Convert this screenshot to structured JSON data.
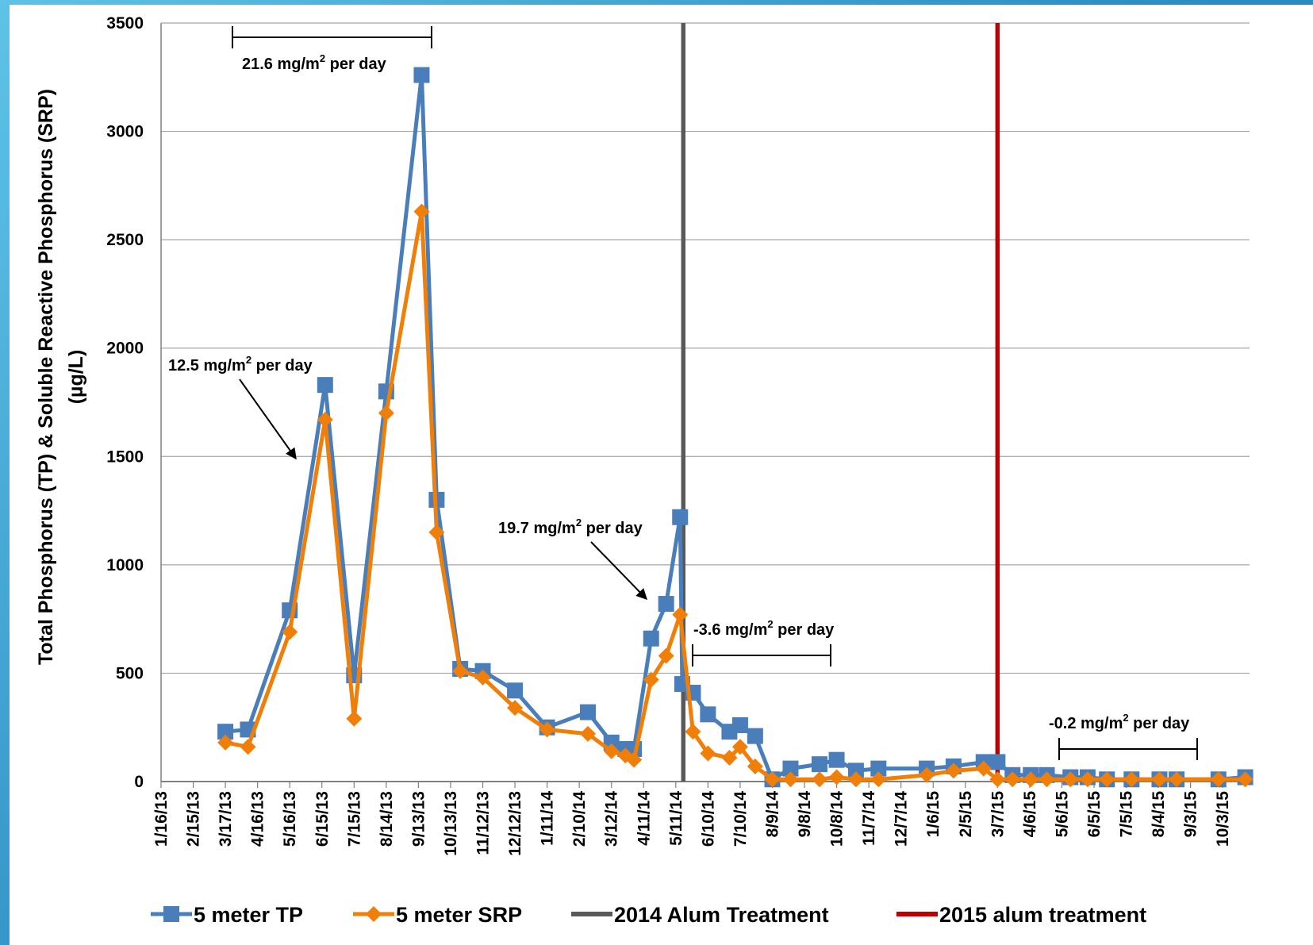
{
  "chart_data": {
    "type": "line",
    "ylabel_lines": [
      "Total Phosphorus (TP) & Soluble Reactive Phosphorus (SRP)",
      "(µg/L)"
    ],
    "ylim": [
      0,
      3500
    ],
    "yticks": [
      0,
      500,
      1000,
      1500,
      2000,
      2500,
      3000,
      3500
    ],
    "xlim": [
      "2013-01-16",
      "2015-10-28"
    ],
    "xtick_labels": [
      "1/16/13",
      "2/15/13",
      "3/17/13",
      "4/16/13",
      "5/16/13",
      "6/15/13",
      "7/15/13",
      "8/14/13",
      "9/13/13",
      "10/13/13",
      "11/12/13",
      "12/12/13",
      "1/11/14",
      "2/10/14",
      "3/12/14",
      "4/11/14",
      "5/11/14",
      "6/10/14",
      "7/10/14",
      "8/9/14",
      "9/8/14",
      "10/8/14",
      "11/7/14",
      "12/7/14",
      "1/6/15",
      "2/5/15",
      "3/7/15",
      "4/6/15",
      "5/6/15",
      "6/5/15",
      "7/5/15",
      "8/4/15",
      "9/3/15",
      "10/3/15"
    ],
    "xtick_dates": [
      "2013-01-16",
      "2013-02-15",
      "2013-03-17",
      "2013-04-16",
      "2013-05-16",
      "2013-06-15",
      "2013-07-15",
      "2013-08-14",
      "2013-09-13",
      "2013-10-13",
      "2013-11-12",
      "2013-12-12",
      "2014-01-11",
      "2014-02-10",
      "2014-03-12",
      "2014-04-11",
      "2014-05-11",
      "2014-06-10",
      "2014-07-10",
      "2014-08-09",
      "2014-09-08",
      "2014-10-08",
      "2014-11-07",
      "2014-12-07",
      "2015-01-06",
      "2015-02-05",
      "2015-03-07",
      "2015-04-06",
      "2015-05-06",
      "2015-06-05",
      "2015-07-05",
      "2015-08-04",
      "2015-09-03",
      "2015-10-03"
    ],
    "grid": true,
    "legend_position": "bottom",
    "series": [
      {
        "name": "5 meter TP",
        "color": "#4a7ebb",
        "marker": "square",
        "x": [
          "2013-03-17",
          "2013-04-07",
          "2013-05-16",
          "2013-06-18",
          "2013-07-15",
          "2013-08-14",
          "2013-09-16",
          "2013-09-30",
          "2013-10-22",
          "2013-11-12",
          "2013-12-12",
          "2014-01-11",
          "2014-02-18",
          "2014-03-12",
          "2014-03-25",
          "2014-04-02",
          "2014-04-18",
          "2014-05-02",
          "2014-05-15",
          "2014-05-17",
          "2014-05-27",
          "2014-06-10",
          "2014-06-30",
          "2014-07-10",
          "2014-07-24",
          "2014-08-09",
          "2014-08-26",
          "2014-09-22",
          "2014-10-08",
          "2014-10-26",
          "2014-11-16",
          "2014-12-31",
          "2015-01-25",
          "2015-02-22",
          "2015-03-07",
          "2015-03-21",
          "2015-04-07",
          "2015-04-22",
          "2015-05-14",
          "2015-05-30",
          "2015-06-17",
          "2015-07-10",
          "2015-08-05",
          "2015-08-21",
          "2015-09-29",
          "2015-10-24"
        ],
        "values": [
          230,
          240,
          790,
          1830,
          490,
          1800,
          3260,
          1300,
          520,
          510,
          420,
          250,
          320,
          180,
          150,
          150,
          660,
          820,
          1220,
          450,
          410,
          310,
          230,
          260,
          210,
          10,
          60,
          80,
          100,
          50,
          60,
          60,
          70,
          90,
          90,
          30,
          30,
          30,
          20,
          20,
          10,
          10,
          10,
          10,
          10,
          20
        ]
      },
      {
        "name": "5 meter SRP",
        "color": "#f07f09",
        "marker": "diamond",
        "x": [
          "2013-03-17",
          "2013-04-07",
          "2013-05-16",
          "2013-06-18",
          "2013-07-15",
          "2013-08-14",
          "2013-09-16",
          "2013-09-30",
          "2013-10-22",
          "2013-11-12",
          "2013-12-12",
          "2014-01-11",
          "2014-02-18",
          "2014-03-12",
          "2014-03-25",
          "2014-04-02",
          "2014-04-18",
          "2014-05-02",
          "2014-05-15",
          "2014-05-27",
          "2014-06-10",
          "2014-06-30",
          "2014-07-10",
          "2014-07-24",
          "2014-08-09",
          "2014-08-26",
          "2014-09-22",
          "2014-10-08",
          "2014-10-26",
          "2014-11-16",
          "2014-12-31",
          "2015-01-25",
          "2015-02-22",
          "2015-03-07",
          "2015-03-21",
          "2015-04-07",
          "2015-04-22",
          "2015-05-14",
          "2015-05-30",
          "2015-06-17",
          "2015-07-10",
          "2015-08-05",
          "2015-08-21",
          "2015-09-29",
          "2015-10-24"
        ],
        "values": [
          180,
          160,
          690,
          1670,
          290,
          1700,
          2630,
          1150,
          510,
          480,
          340,
          240,
          220,
          140,
          120,
          100,
          470,
          580,
          770,
          230,
          130,
          110,
          160,
          70,
          10,
          10,
          10,
          20,
          10,
          10,
          30,
          50,
          60,
          10,
          10,
          10,
          10,
          10,
          10,
          10,
          10,
          10,
          10,
          10,
          10
        ]
      }
    ],
    "vertical_lines": [
      {
        "name": "2014 Alum Treatment",
        "color": "#595959",
        "x": "2014-05-18"
      },
      {
        "name": "2015 alum treatment",
        "color": "#c00000",
        "x": "2015-03-07"
      }
    ],
    "annotations": [
      {
        "pre": "21.6 mg/m",
        "sup": "2",
        "post": " per day"
      },
      {
        "pre": "12.5 mg/m",
        "sup": "2",
        "post": " per day"
      },
      {
        "pre": "19.7 mg/m",
        "sup": "2",
        "post": " per day"
      },
      {
        "pre": "-3.6 mg/m",
        "sup": "2",
        "post": " per day"
      },
      {
        "pre": "-0.2 mg/m",
        "sup": "2",
        "post": " per day"
      }
    ]
  }
}
